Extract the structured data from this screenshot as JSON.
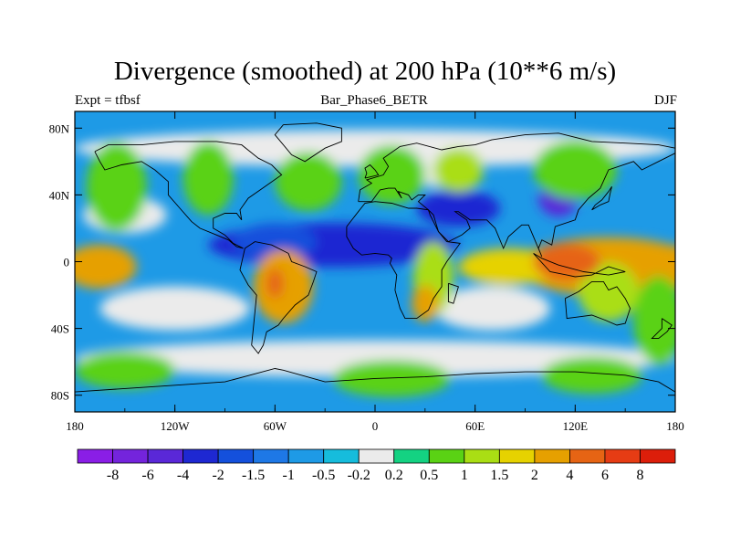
{
  "title": "Divergence (smoothed) at 200 hPa (10**6 m/s)",
  "subtitle_left": "Expt = tfbsf",
  "subtitle_center": "Bar_Phase6_BETR",
  "subtitle_right": "DJF",
  "map_data": {
    "variable": "Divergence (smoothed)",
    "level": "200 hPa",
    "units": "10**6 m/s",
    "projection": "cylindrical equidistant",
    "lon_range": [
      -180,
      180
    ],
    "lat_range": [
      -90,
      90
    ],
    "x_tick_labels": [
      "180",
      "120W",
      "60W",
      "0",
      "60E",
      "120E",
      "180"
    ],
    "x_tick_values": [
      -180,
      -120,
      -60,
      0,
      60,
      120,
      180
    ],
    "y_tick_labels": [
      "80N",
      "40N",
      "0",
      "40S",
      "80S"
    ],
    "y_tick_values": [
      80,
      40,
      0,
      -40,
      -80
    ]
  },
  "colorbar": {
    "levels": [
      "-8",
      "-6",
      "-4",
      "-2",
      "-1.5",
      "-1",
      "-0.5",
      "-0.2",
      "0.2",
      "0.5",
      "1",
      "1.5",
      "2",
      "4",
      "6",
      "8"
    ],
    "colors": [
      "#8a1ee6",
      "#7424dc",
      "#5a28d8",
      "#1e28d2",
      "#1450dc",
      "#1e78e6",
      "#1e9ae6",
      "#16bcdc",
      "#ebebeb",
      "#14d282",
      "#5ad214",
      "#aade14",
      "#e6d200",
      "#e6a000",
      "#e66414",
      "#e63c14",
      "#dc1e0a"
    ],
    "neutral_color": "#ebebeb"
  }
}
